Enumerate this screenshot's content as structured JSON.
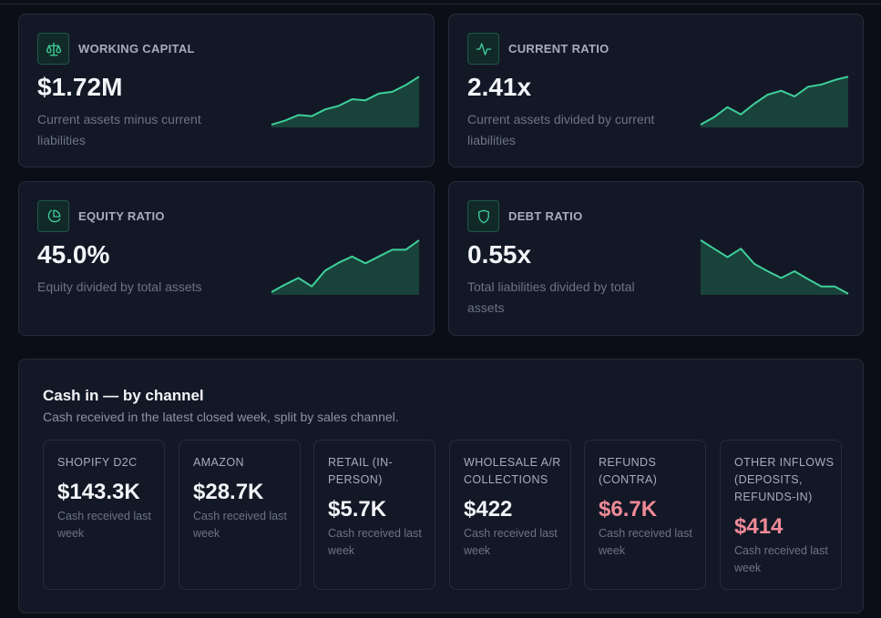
{
  "metrics": [
    {
      "title": "WORKING CAPITAL",
      "value": "$1.72M",
      "description": "Current assets minus current liabilities",
      "icon": "scale-icon",
      "sparkline": [
        0.05,
        0.12,
        0.22,
        0.2,
        0.32,
        0.38,
        0.5,
        0.48,
        0.6,
        0.63,
        0.75,
        0.9
      ]
    },
    {
      "title": "CURRENT RATIO",
      "value": "2.41x",
      "description": "Current assets divided by current liabilities",
      "icon": "activity-icon",
      "sparkline": [
        0.05,
        0.18,
        0.36,
        0.23,
        0.42,
        0.58,
        0.65,
        0.55,
        0.72,
        0.76,
        0.84,
        0.9
      ]
    },
    {
      "title": "EQUITY RATIO",
      "value": "45.0%",
      "description": "Equity divided by total assets",
      "icon": "pie-chart-icon",
      "sparkline": [
        0.05,
        0.18,
        0.3,
        0.15,
        0.43,
        0.57,
        0.68,
        0.56,
        0.68,
        0.8,
        0.8,
        0.97
      ]
    },
    {
      "title": "DEBT RATIO",
      "value": "0.55x",
      "description": "Total liabilities divided by total assets",
      "icon": "shield-icon",
      "sparkline": [
        0.97,
        0.82,
        0.67,
        0.82,
        0.55,
        0.42,
        0.3,
        0.42,
        0.28,
        0.15,
        0.15,
        0.02
      ]
    }
  ],
  "accent_color": "#3ecf9a",
  "cash_section": {
    "title": "Cash in — by channel",
    "subtitle": "Cash received in the latest closed week, split by sales channel.",
    "channels": [
      {
        "label": "SHOPIFY D2C",
        "value": "$143.3K",
        "description": "Cash received last week",
        "negative": false
      },
      {
        "label": "AMAZON",
        "value": "$28.7K",
        "description": "Cash received last week",
        "negative": false
      },
      {
        "label": "RETAIL (IN-PERSON)",
        "value": "$5.7K",
        "description": "Cash received last week",
        "negative": false
      },
      {
        "label": "WHOLESALE A/R COLLECTIONS",
        "value": "$422",
        "description": "Cash received last week",
        "negative": false
      },
      {
        "label": "REFUNDS (CONTRA)",
        "value": "$6.7K",
        "description": "Cash received last week",
        "negative": true
      },
      {
        "label": "OTHER INFLOWS (DEPOSITS, REFUNDS-IN)",
        "value": "$414",
        "description": "Cash received last week",
        "negative": true
      }
    ]
  }
}
